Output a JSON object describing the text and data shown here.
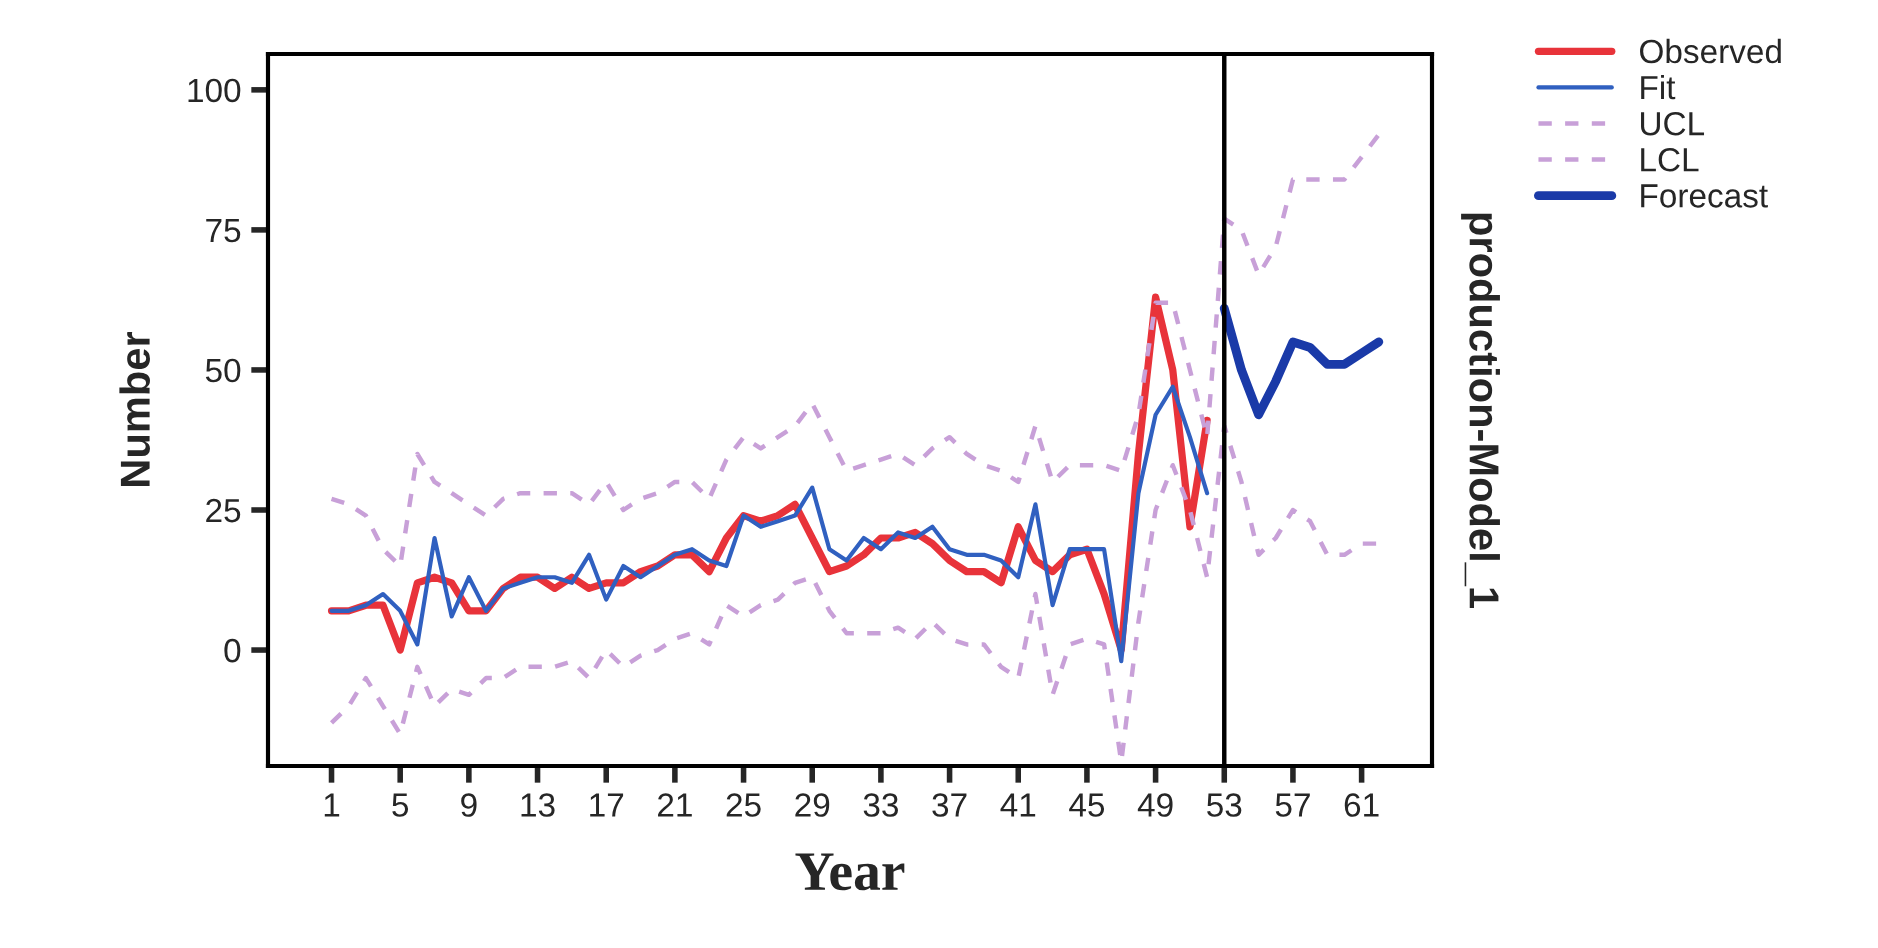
{
  "chart_data": {
    "type": "line",
    "xlabel": "Year",
    "ylabel": "Number",
    "y2label": "production-Model_1",
    "xlim": [
      -2.7,
      65.1
    ],
    "ylim": [
      -20.7,
      106.4
    ],
    "xticks": [
      1,
      5,
      9,
      13,
      17,
      21,
      25,
      29,
      33,
      37,
      41,
      45,
      49,
      53,
      57,
      61
    ],
    "yticks": [
      0,
      25,
      50,
      75,
      100
    ],
    "grid": false,
    "legend": "top right",
    "marker": "none",
    "ref_lines": [
      {
        "axis": "x",
        "value": 53,
        "color": "#000000",
        "line_style": "solid"
      }
    ],
    "series": [
      {
        "name": "Observed",
        "color": "#e8333a",
        "line_style": "solid",
        "x": [
          1,
          2,
          3,
          4,
          5,
          6,
          7,
          8,
          9,
          10,
          11,
          12,
          13,
          14,
          15,
          16,
          17,
          18,
          19,
          20,
          21,
          22,
          23,
          24,
          25,
          26,
          27,
          28,
          29,
          30,
          31,
          32,
          33,
          34,
          35,
          36,
          37,
          38,
          39,
          40,
          41,
          42,
          43,
          44,
          45,
          46,
          47,
          48,
          49,
          50,
          51,
          52
        ],
        "values": [
          7,
          7,
          8,
          8,
          0,
          12,
          13,
          12,
          7,
          7,
          11,
          13,
          13,
          11,
          13,
          11,
          12,
          12,
          14,
          15,
          17,
          17,
          14,
          20,
          24,
          23,
          24,
          26,
          20,
          14,
          15,
          17,
          20,
          20,
          21,
          19,
          16,
          14,
          14,
          12,
          22,
          16,
          14,
          17,
          18,
          10,
          0,
          35,
          63,
          50,
          22,
          41
        ]
      },
      {
        "name": "Fit",
        "color": "#3060c0",
        "line_style": "solid",
        "x": [
          1,
          2,
          3,
          4,
          5,
          6,
          7,
          8,
          9,
          10,
          11,
          12,
          13,
          14,
          15,
          16,
          17,
          18,
          19,
          20,
          21,
          22,
          23,
          24,
          25,
          26,
          27,
          28,
          29,
          30,
          31,
          32,
          33,
          34,
          35,
          36,
          37,
          38,
          39,
          40,
          41,
          42,
          43,
          44,
          45,
          46,
          47,
          48,
          49,
          50,
          51,
          52
        ],
        "values": [
          7,
          7,
          8,
          10,
          7,
          1,
          20,
          6,
          13,
          7,
          11,
          12,
          13,
          13,
          12,
          17,
          9,
          15,
          13,
          15,
          17,
          18,
          16,
          15,
          24,
          22,
          23,
          24,
          29,
          18,
          16,
          20,
          18,
          21,
          20,
          22,
          18,
          17,
          17,
          16,
          13,
          26,
          8,
          18,
          18,
          18,
          -2,
          28,
          42,
          47,
          38,
          28
        ]
      },
      {
        "name": "UCL",
        "color": "#c8a0d8",
        "line_style": "dashed",
        "x": [
          1,
          2,
          3,
          4,
          5,
          6,
          7,
          8,
          9,
          10,
          11,
          12,
          13,
          14,
          15,
          16,
          17,
          18,
          19,
          20,
          21,
          22,
          23,
          24,
          25,
          26,
          27,
          28,
          29,
          30,
          31,
          32,
          33,
          34,
          35,
          36,
          37,
          38,
          39,
          40,
          41,
          42,
          43,
          44,
          45,
          46,
          47,
          48,
          49,
          50,
          51,
          52,
          53,
          54,
          55,
          56,
          57,
          58,
          59,
          60,
          61,
          62
        ],
        "values": [
          27,
          26,
          24,
          18,
          15,
          35,
          30,
          28,
          26,
          24,
          27,
          28,
          28,
          28,
          28,
          26,
          30,
          25,
          27,
          28,
          30,
          30,
          27,
          34,
          38,
          36,
          38,
          40,
          44,
          38,
          32,
          33,
          34,
          35,
          33,
          36,
          38,
          35,
          33,
          32,
          30,
          40,
          30,
          33,
          33,
          33,
          32,
          42,
          62,
          62,
          50,
          38,
          77,
          75,
          67,
          72,
          84,
          84,
          84,
          84,
          88,
          92
        ]
      },
      {
        "name": "LCL",
        "color": "#c8a0d8",
        "line_style": "dashed",
        "x": [
          1,
          2,
          3,
          4,
          5,
          6,
          7,
          8,
          9,
          10,
          11,
          12,
          13,
          14,
          15,
          16,
          17,
          18,
          19,
          20,
          21,
          22,
          23,
          24,
          25,
          26,
          27,
          28,
          29,
          30,
          31,
          32,
          33,
          34,
          35,
          36,
          37,
          38,
          39,
          40,
          41,
          42,
          43,
          44,
          45,
          46,
          47,
          48,
          49,
          50,
          51,
          52,
          53,
          54,
          55,
          56,
          57,
          58,
          59,
          60,
          61,
          62
        ],
        "values": [
          -13,
          -10,
          -5,
          -10,
          -15,
          -3,
          -10,
          -7,
          -8,
          -5,
          -5,
          -3,
          -3,
          -3,
          -2,
          -5,
          0,
          -3,
          -1,
          0,
          2,
          3,
          1,
          8,
          6,
          8,
          9,
          12,
          13,
          7,
          3,
          3,
          3,
          4,
          2,
          5,
          2,
          1,
          1,
          -3,
          -5,
          10,
          -8,
          1,
          2,
          1,
          -20,
          5,
          25,
          33,
          25,
          13,
          40,
          30,
          17,
          20,
          25,
          23,
          17,
          17,
          19,
          19
        ]
      },
      {
        "name": "Forecast",
        "color": "#1a3aa8",
        "line_style": "solid",
        "x": [
          53,
          54,
          55,
          56,
          57,
          58,
          59,
          60,
          61,
          62
        ],
        "values": [
          61,
          50,
          42,
          48,
          55,
          54,
          51,
          51,
          53,
          55
        ]
      }
    ]
  }
}
